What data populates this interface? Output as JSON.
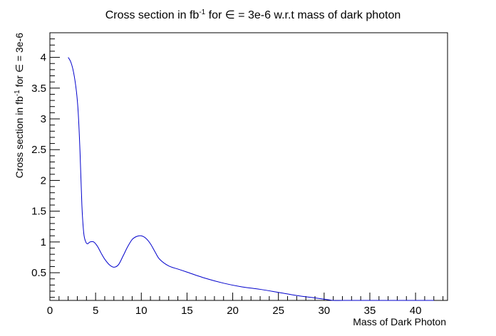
{
  "chart_data": {
    "type": "line",
    "title": {
      "pre": "Cross section in fb",
      "sup": "-1",
      "post": " for ∈ = 3e-6 w.r.t mass of dark photon"
    },
    "xlabel": "Mass of Dark Photon",
    "ylabel": {
      "pre": "Cross section in fb",
      "sup": "-1",
      "post": " for ∈ = 3e-6"
    },
    "xlim": [
      0,
      43.5
    ],
    "ylim": [
      0.05,
      4.4
    ],
    "x_ticks": [
      0,
      5,
      10,
      15,
      20,
      25,
      30,
      35,
      40
    ],
    "y_ticks": [
      0.5,
      1,
      1.5,
      2,
      2.5,
      3,
      3.5,
      4
    ],
    "grid": false,
    "line_color": "#0000cc",
    "series": [
      {
        "x": [
          2.0,
          2.3,
          2.6,
          2.9,
          3.1,
          3.3,
          3.5,
          3.7,
          3.9,
          4.1,
          4.4,
          4.8,
          5.2,
          5.6,
          6.0,
          6.5,
          7.0,
          7.5,
          8.0,
          8.5,
          9.0,
          9.5,
          10.0,
          10.5,
          11.0,
          11.5,
          12.0,
          13.0,
          14.0,
          15.0,
          17.0,
          19.0,
          21.0,
          23.0,
          25.0,
          27.0,
          29.0,
          30.0,
          31.0,
          32.0,
          33.0,
          35.0,
          37.0,
          40.0,
          42.0
        ],
        "y": [
          4.0,
          3.92,
          3.75,
          3.45,
          3.1,
          2.45,
          1.6,
          1.15,
          1.01,
          0.97,
          1.0,
          1.0,
          0.93,
          0.82,
          0.72,
          0.63,
          0.59,
          0.63,
          0.77,
          0.92,
          1.04,
          1.09,
          1.1,
          1.06,
          0.97,
          0.84,
          0.72,
          0.61,
          0.56,
          0.51,
          0.41,
          0.33,
          0.27,
          0.23,
          0.18,
          0.13,
          0.09,
          0.07,
          0.05,
          0.03,
          0.02,
          0.01,
          0.0,
          0.0,
          0.0
        ]
      }
    ]
  }
}
